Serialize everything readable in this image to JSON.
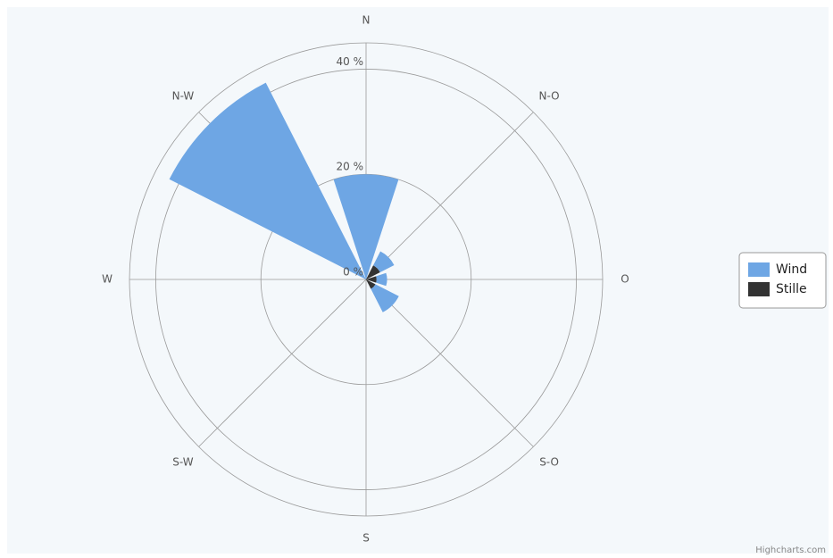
{
  "chart_data": {
    "type": "windrose",
    "categories": [
      "N",
      "N-O",
      "O",
      "S-O",
      "S",
      "S-W",
      "W",
      "N-W"
    ],
    "series": [
      {
        "name": "Wind",
        "color": "#6ea6e4",
        "values": [
          20,
          3,
          2,
          5,
          0,
          0,
          0,
          42
        ]
      },
      {
        "name": "Stille",
        "color": "#333333",
        "values": [
          0,
          3,
          2,
          2,
          0,
          0,
          0,
          0
        ]
      }
    ],
    "ylim": [
      0,
      45
    ],
    "yticks": [
      {
        "value": 0,
        "label": "0 %"
      },
      {
        "value": 20,
        "label": "20 %"
      },
      {
        "value": 40,
        "label": "40 %"
      }
    ],
    "grid": true,
    "legend": "right",
    "credit": "Highcharts.com"
  }
}
